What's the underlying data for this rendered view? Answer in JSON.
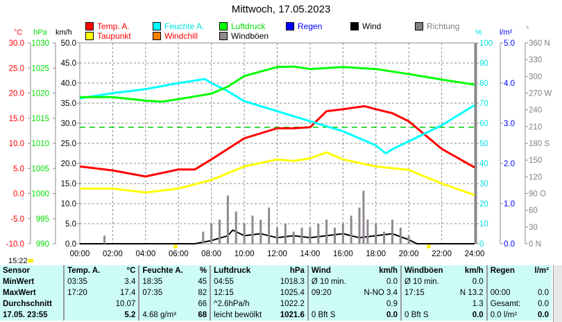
{
  "title": "Mittwoch, 17.05.2023",
  "legend": [
    {
      "label": "Temp. A.",
      "color": "#ff0000",
      "text_color": "#ff0000"
    },
    {
      "label": "Feuchte A.",
      "color": "#00ffff",
      "text_color": "#00e0e0"
    },
    {
      "label": "Luftdruck",
      "color": "#00ff00",
      "text_color": "#00dd00"
    },
    {
      "label": "Regen",
      "color": "#0000ff",
      "text_color": "#0000ff"
    },
    {
      "label": "Wind",
      "color": "#000000",
      "text_color": "#000000"
    },
    {
      "label": "Richtung",
      "color": "#808080",
      "text_color": "#808080"
    },
    {
      "label": "Taupunkt",
      "color": "#ffff00",
      "text_color": "#ff0000"
    },
    {
      "label": "Windchill",
      "color": "#ff8000",
      "text_color": "#ff0000"
    },
    {
      "label": "Windböen",
      "color": "#908890",
      "text_color": "#000000"
    }
  ],
  "now_time": "15:22",
  "chart_data": {
    "type": "line",
    "x_ticks": [
      "00:00",
      "02:00",
      "04:00",
      "06:00",
      "08:00",
      "10:00",
      "12:00",
      "14:00",
      "16:00",
      "18:00",
      "20:00",
      "22:00",
      "24:00"
    ],
    "axes": {
      "temp": {
        "unit": "°C",
        "ticks": [
          "30.0",
          "25.0",
          "20.0",
          "15.0",
          "10.0",
          "5.0",
          "0.0",
          "-5.0",
          "-10.0"
        ],
        "range": [
          -10,
          30
        ]
      },
      "pressure": {
        "unit": "hPa",
        "ticks": [
          "1030",
          "1025",
          "1020",
          "1015",
          "1010",
          "1005",
          "1000",
          "995",
          "990"
        ],
        "range": [
          990,
          1030
        ]
      },
      "wind": {
        "unit": "km/h",
        "ticks": [
          "50.0",
          "45.0",
          "40.0",
          "35.0",
          "30.0",
          "25.0",
          "20.0",
          "15.0",
          "10.0",
          "5.0",
          "0.0"
        ],
        "range": [
          0,
          50
        ]
      },
      "humidity": {
        "unit": "%",
        "ticks": [
          "100",
          "90",
          "80",
          "70",
          "60",
          "50",
          "40",
          "30",
          "20",
          "10",
          "0"
        ],
        "range": [
          0,
          100
        ]
      },
      "rain": {
        "unit": "l/m²",
        "ticks": [
          "5.0",
          "4.0",
          "3.0",
          "2.0",
          "1.0",
          "0.0"
        ],
        "range": [
          0,
          5
        ]
      },
      "direction": {
        "unit": "°",
        "ticks": [
          "360 N",
          "330",
          "300",
          "270 W",
          "240",
          "210",
          "180 S",
          "150",
          "120",
          "90  O",
          "60",
          "30",
          "0   N"
        ],
        "range": [
          0,
          360
        ]
      }
    },
    "series": [
      {
        "name": "Temp. A.",
        "axis": "temp",
        "color": "#ff0000",
        "x": [
          0,
          2,
          4,
          6,
          7,
          8,
          10,
          11,
          12,
          13,
          14,
          15,
          16,
          17.3,
          18,
          19,
          20,
          22,
          24
        ],
        "y": [
          5.4,
          4.6,
          3.4,
          4.8,
          4.8,
          6.8,
          11,
          12,
          13,
          13,
          13.2,
          16.4,
          16.8,
          17.4,
          16.8,
          16,
          14.4,
          8.9,
          5.2
        ]
      },
      {
        "name": "Taupunkt",
        "axis": "temp",
        "color": "#ffff00",
        "x": [
          0,
          2,
          4,
          6,
          8,
          10,
          12,
          13,
          14,
          15,
          16,
          18,
          20,
          22,
          24
        ],
        "y": [
          1,
          1,
          0.2,
          1,
          2.7,
          5.4,
          6.8,
          6.5,
          7,
          8.2,
          6.8,
          5.4,
          4.7,
          2,
          -0.3
        ]
      },
      {
        "name": "Feuchte A.",
        "axis": "humidity",
        "color": "#00ffff",
        "x": [
          0,
          2,
          4,
          6,
          7.6,
          8,
          9,
          10,
          12,
          14,
          16,
          18,
          18.6,
          19,
          20,
          22,
          24
        ],
        "y": [
          72.4,
          75,
          77,
          80,
          82,
          80,
          76,
          71,
          66,
          61,
          56,
          49,
          45,
          47,
          51,
          59,
          69
        ]
      },
      {
        "name": "Luftdruck",
        "axis": "pressure",
        "color": "#00ff00",
        "x": [
          0,
          2,
          4,
          5,
          6,
          8,
          9,
          10,
          12,
          13,
          14,
          16,
          18,
          20,
          22,
          24
        ],
        "y": [
          1019.2,
          1019.2,
          1018.5,
          1018.3,
          1018.8,
          1019.9,
          1021.3,
          1023.4,
          1025.2,
          1025.3,
          1024.8,
          1025.2,
          1024.8,
          1023.8,
          1022.7,
          1021.7
        ]
      },
      {
        "name": "Wind",
        "axis": "wind",
        "color": "#000000",
        "x": [
          0,
          7,
          8,
          9,
          9.3,
          10,
          11,
          12,
          13,
          14,
          15,
          16,
          17,
          18,
          19,
          20,
          20.5,
          24
        ],
        "y": [
          0,
          0,
          0.8,
          2,
          3.4,
          2,
          2.5,
          1.5,
          2,
          1.5,
          2,
          2.5,
          1.5,
          2,
          2.5,
          1,
          0,
          0
        ]
      },
      {
        "name": "Windböen",
        "axis": "wind",
        "color": "#908890",
        "type": "bars",
        "x": [
          1.5,
          7.5,
          8,
          8.5,
          9,
          9.5,
          10,
          10.5,
          11,
          11.5,
          12,
          12.5,
          13,
          13.5,
          14,
          14.5,
          15,
          15.5,
          16,
          16.5,
          17,
          17.25,
          17.5,
          18,
          18.5,
          19,
          19.5,
          20
        ],
        "y": [
          2,
          3,
          5,
          6,
          12,
          8,
          5,
          7,
          6,
          9,
          4,
          5,
          3,
          4,
          4,
          5,
          6,
          4,
          5,
          7,
          9,
          13.2,
          6,
          5,
          3,
          6,
          4,
          2
        ]
      }
    ],
    "reference_line": {
      "axis": "temp",
      "value": 13.2,
      "color": "#00cc00"
    }
  },
  "table": {
    "headers": [
      [
        "Sensor",
        ""
      ],
      [
        "Temp. A.",
        "°C"
      ],
      [
        "Feuchte A.",
        "%"
      ],
      [
        "Luftdruck",
        "hPa"
      ],
      [
        "Wind",
        "km/h"
      ],
      [
        "Windböen",
        "km/h"
      ],
      [
        "Regen",
        "l/m²"
      ]
    ],
    "rows": [
      {
        "label": "MinWert",
        "cells": [
          [
            "03:35",
            "3.4"
          ],
          [
            "18:35",
            "45"
          ],
          [
            "04:55",
            "1018.3"
          ],
          [
            "Ø 10 min.",
            "0.0"
          ],
          [
            "Ø 10 min.",
            "0.0"
          ],
          [
            "",
            ""
          ]
        ]
      },
      {
        "label": "MaxWert",
        "cells": [
          [
            "17:20",
            "17.4"
          ],
          [
            "07:35",
            "82"
          ],
          [
            "12:15",
            "1025.4"
          ],
          [
            "09:20",
            "N-NO 3.4"
          ],
          [
            "17:15",
            "N 13.2"
          ],
          [
            "00:00",
            "0.0"
          ]
        ]
      },
      {
        "label": "Durchschnitt",
        "cells": [
          [
            "",
            "10.07"
          ],
          [
            "",
            "66"
          ],
          [
            "^2.6hPa/h",
            "1022.2"
          ],
          [
            "",
            "0.9"
          ],
          [
            "",
            "1.3"
          ],
          [
            "Gesamt:",
            "0.0"
          ]
        ]
      },
      {
        "label": "17.05. 23:55",
        "cells": [
          [
            "",
            "5.2"
          ],
          [
            "4.68 g/m³",
            "68"
          ],
          [
            "leicht bewölkt",
            "1021.6"
          ],
          [
            "0 Bft S",
            "0.0"
          ],
          [
            "0 Bft S",
            "0.0"
          ],
          [
            "0.0 l/m²",
            "0.0"
          ]
        ]
      }
    ]
  }
}
